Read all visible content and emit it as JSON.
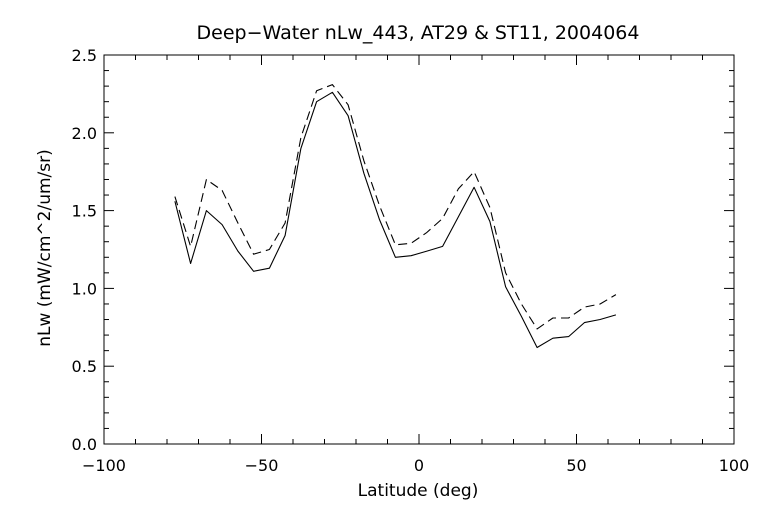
{
  "chart_data": {
    "type": "line",
    "title": "Deep−Water nLw_443, AT29 & ST11, 2004064",
    "xlabel": "Latitude (deg)",
    "ylabel": "nLw (mW/cm^2/um/sr)",
    "xlim": [
      -100,
      100
    ],
    "ylim": [
      0.0,
      2.5
    ],
    "x_ticks": [
      -100,
      -50,
      0,
      50,
      100
    ],
    "x_tick_labels": [
      "−100",
      "−50",
      "0",
      "50",
      "100"
    ],
    "y_ticks": [
      0.0,
      0.5,
      1.0,
      1.5,
      2.0,
      2.5
    ],
    "y_tick_labels": [
      "0.0",
      "0.5",
      "1.0",
      "1.5",
      "2.0",
      "2.5"
    ],
    "grid": false,
    "legend": "none",
    "series": [
      {
        "style": "solid",
        "color": "#000000",
        "x": [
          -77.5,
          -72.5,
          -67.5,
          -62.5,
          -57.5,
          -52.5,
          -47.5,
          -42.5,
          -37.5,
          -32.5,
          -27.5,
          -22.5,
          -17.5,
          -12.5,
          -7.5,
          -2.5,
          2.5,
          7.5,
          12.5,
          17.5,
          22.5,
          27.5,
          32.5,
          37.5,
          42.5,
          47.5,
          52.5,
          57.5,
          62.5
        ],
        "y": [
          1.56,
          1.16,
          1.5,
          1.41,
          1.24,
          1.11,
          1.13,
          1.34,
          1.9,
          2.2,
          2.26,
          2.11,
          1.74,
          1.44,
          1.2,
          1.21,
          1.24,
          1.27,
          1.46,
          1.65,
          1.43,
          1.01,
          0.82,
          0.62,
          0.68,
          0.69,
          0.78,
          0.8,
          0.83
        ]
      },
      {
        "style": "dashed",
        "color": "#000000",
        "x": [
          -77.5,
          -72.5,
          -67.5,
          -62.5,
          -57.5,
          -52.5,
          -47.5,
          -42.5,
          -37.5,
          -32.5,
          -27.5,
          -22.5,
          -17.5,
          -12.5,
          -7.5,
          -2.5,
          2.5,
          7.5,
          12.5,
          17.5,
          22.5,
          27.5,
          32.5,
          37.5,
          42.5,
          47.5,
          52.5,
          57.5,
          62.5
        ],
        "y": [
          1.59,
          1.27,
          1.7,
          1.63,
          1.42,
          1.22,
          1.25,
          1.42,
          1.97,
          2.27,
          2.31,
          2.18,
          1.82,
          1.53,
          1.28,
          1.29,
          1.36,
          1.45,
          1.64,
          1.75,
          1.52,
          1.1,
          0.9,
          0.74,
          0.81,
          0.81,
          0.88,
          0.9,
          0.96
        ]
      }
    ]
  }
}
